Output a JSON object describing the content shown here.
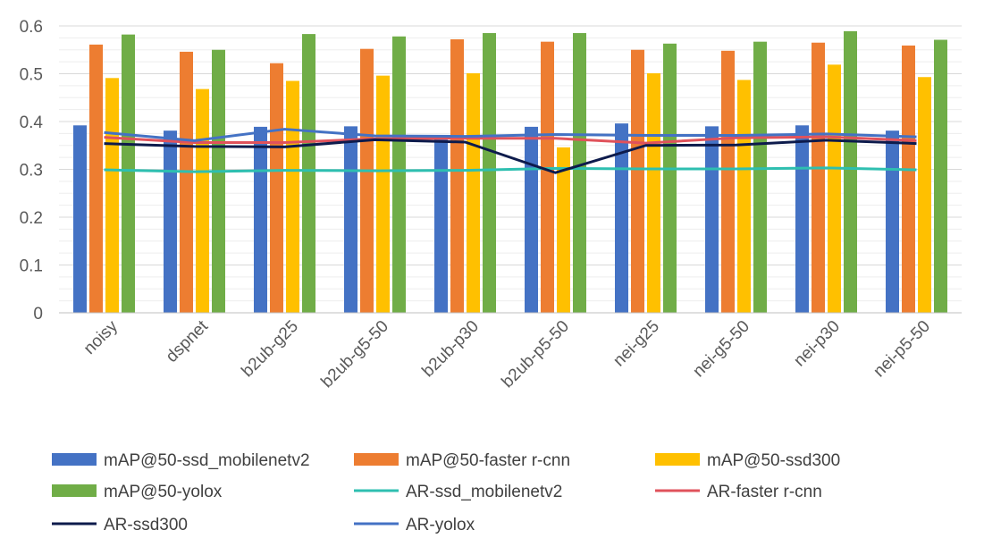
{
  "chart_data": {
    "type": "bar",
    "categories": [
      "noisy",
      "dspnet",
      "b2ub-g25",
      "b2ub-g5-50",
      "b2ub-p30",
      "b2ub-p5-50",
      "nei-g25",
      "nei-g5-50",
      "nei-p30",
      "nei-p5-50"
    ],
    "ylim": [
      0,
      0.6
    ],
    "yticks": [
      "0",
      "0.1",
      "0.2",
      "0.3",
      "0.4",
      "0.5",
      "0.6"
    ],
    "grid": true,
    "legend_position": "bottom",
    "bar_series": [
      {
        "name": "mAP@50-ssd_mobilenetv2",
        "color": "#4472C4",
        "values": [
          0.392,
          0.381,
          0.389,
          0.39,
          0.365,
          0.389,
          0.396,
          0.39,
          0.392,
          0.381
        ]
      },
      {
        "name": "mAP@50-faster r-cnn",
        "color": "#ED7D31",
        "values": [
          0.561,
          0.546,
          0.522,
          0.552,
          0.572,
          0.567,
          0.55,
          0.548,
          0.565,
          0.559
        ]
      },
      {
        "name": "mAP@50-ssd300",
        "color": "#FFC000",
        "values": [
          0.491,
          0.468,
          0.485,
          0.496,
          0.501,
          0.346,
          0.501,
          0.487,
          0.519,
          0.493
        ]
      },
      {
        "name": "mAP@50-yolox",
        "color": "#70AD47",
        "values": [
          0.582,
          0.55,
          0.583,
          0.578,
          0.585,
          0.585,
          0.563,
          0.567,
          0.589,
          0.571
        ]
      }
    ],
    "line_series": [
      {
        "name": "AR-ssd_mobilenetv2",
        "color": "#2EBFB0",
        "values": [
          0.299,
          0.295,
          0.298,
          0.297,
          0.298,
          0.302,
          0.301,
          0.301,
          0.303,
          0.299
        ]
      },
      {
        "name": "AR-faster r-cnn",
        "color": "#E0525B",
        "values": [
          0.367,
          0.356,
          0.356,
          0.364,
          0.365,
          0.365,
          0.355,
          0.366,
          0.368,
          0.36
        ]
      },
      {
        "name": "AR-ssd300",
        "color": "#0D1B4C",
        "values": [
          0.354,
          0.348,
          0.347,
          0.362,
          0.357,
          0.293,
          0.35,
          0.351,
          0.361,
          0.354
        ]
      },
      {
        "name": "AR-yolox",
        "color": "#4472C4",
        "values": [
          0.377,
          0.36,
          0.384,
          0.37,
          0.369,
          0.373,
          0.371,
          0.371,
          0.374,
          0.368
        ]
      }
    ]
  }
}
